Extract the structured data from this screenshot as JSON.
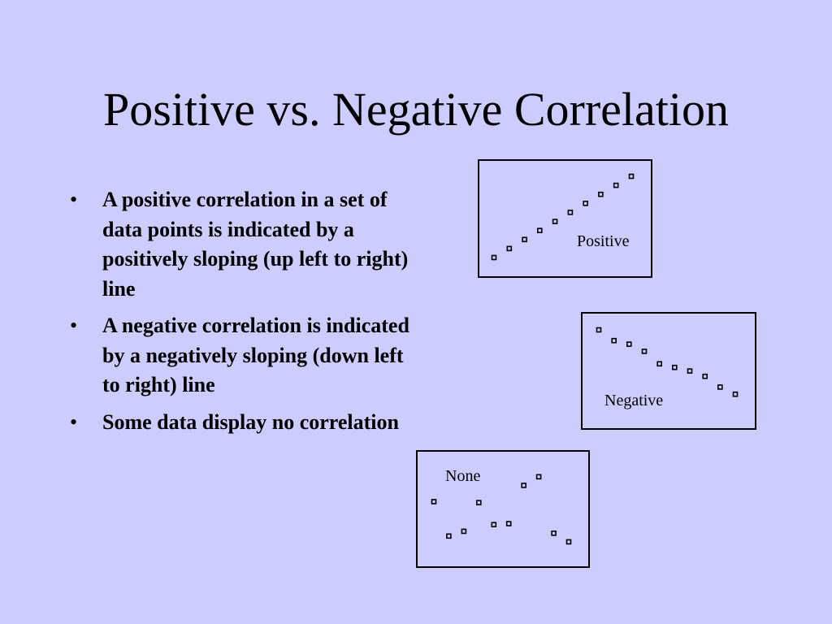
{
  "slide": {
    "title": "Positive vs. Negative Correlation",
    "bullets": [
      "A positive correlation in a set of data points is indicated by a positively sloping (up left to right) line",
      "A negative correlation is indicated by a negatively sloping (down left to right) line",
      "Some data display no correlation"
    ],
    "bullet_symbol": "•"
  },
  "chart_data": [
    {
      "type": "scatter",
      "label": "Positive",
      "points": [
        [
          1,
          1
        ],
        [
          2,
          2
        ],
        [
          3,
          3
        ],
        [
          4,
          4
        ],
        [
          5,
          5
        ],
        [
          6,
          6
        ],
        [
          7,
          7
        ],
        [
          8,
          8
        ],
        [
          9,
          9
        ],
        [
          10,
          10
        ]
      ]
    },
    {
      "type": "scatter",
      "label": "Negative",
      "points": [
        [
          1,
          10
        ],
        [
          2,
          8.8
        ],
        [
          3,
          8.4
        ],
        [
          4,
          7.6
        ],
        [
          5,
          6.2
        ],
        [
          6,
          5.8
        ],
        [
          7,
          5.4
        ],
        [
          8,
          4.8
        ],
        [
          9,
          3.6
        ],
        [
          10,
          2.8
        ]
      ]
    },
    {
      "type": "scatter",
      "label": "None",
      "points": [
        [
          1,
          6.4
        ],
        [
          2,
          2.8
        ],
        [
          3,
          3.3
        ],
        [
          4,
          6.3
        ],
        [
          5,
          4.0
        ],
        [
          6,
          4.1
        ],
        [
          7,
          8.1
        ],
        [
          8,
          9.0
        ],
        [
          9,
          3.1
        ],
        [
          10,
          2.2
        ]
      ]
    }
  ]
}
